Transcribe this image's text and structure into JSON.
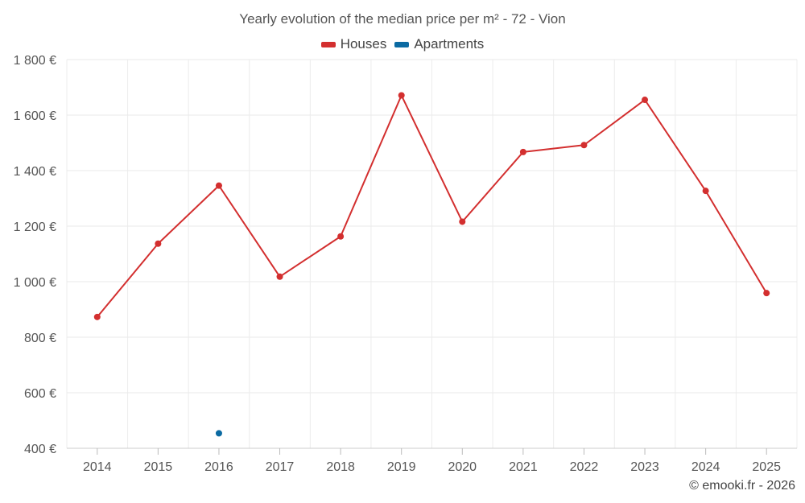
{
  "chart_data": {
    "type": "line",
    "title": "Yearly evolution of the median price per m² - 72 - Vion",
    "categories": [
      "2014",
      "2015",
      "2016",
      "2017",
      "2018",
      "2019",
      "2020",
      "2021",
      "2022",
      "2023",
      "2024",
      "2025"
    ],
    "series": [
      {
        "name": "Houses",
        "color": "#d32f2f",
        "values": [
          873,
          1137,
          1346,
          1018,
          1163,
          1671,
          1216,
          1467,
          1492,
          1655,
          1327,
          959
        ]
      },
      {
        "name": "Apartments",
        "color": "#0b6aa2",
        "values": [
          null,
          null,
          454,
          null,
          null,
          null,
          null,
          null,
          null,
          null,
          null,
          null
        ]
      }
    ],
    "ylim": [
      400,
      1800
    ],
    "yticks": [
      400,
      600,
      800,
      1000,
      1200,
      1400,
      1600,
      1800
    ],
    "ytick_labels": [
      "400 €",
      "600 €",
      "800 €",
      "1 000 €",
      "1 200 €",
      "1 400 €",
      "1 600 €",
      "1 800 €"
    ],
    "xlabel": "",
    "ylabel": "",
    "grid": true,
    "legend_position": "top-center"
  },
  "watermark": "© emooki.fr - 2026"
}
